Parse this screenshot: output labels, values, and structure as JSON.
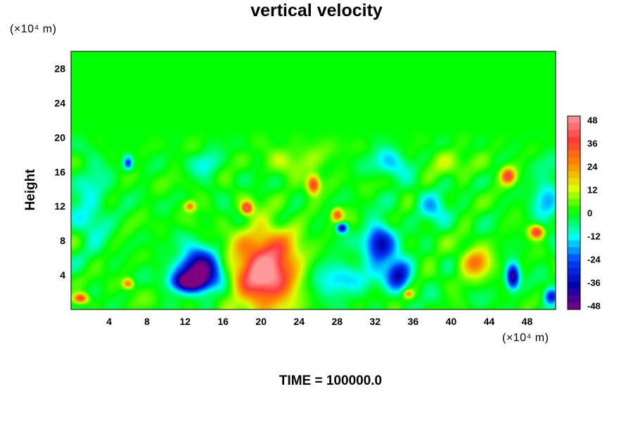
{
  "chart_data": {
    "type": "heatmap",
    "title": "vertical velocity",
    "ylabel": "Height",
    "xlabel": "",
    "y_unit": "(×10⁴ m)",
    "x_unit": "(×10⁴ m)",
    "footer": "TIME = 100000.0",
    "xlim": [
      0,
      51
    ],
    "ylim": [
      0,
      30
    ],
    "x_ticks": [
      4,
      8,
      12,
      16,
      20,
      24,
      28,
      32,
      36,
      40,
      44,
      48
    ],
    "y_ticks": [
      4,
      8,
      12,
      16,
      20,
      24,
      28
    ],
    "colorbar": {
      "range": [
        -50,
        50
      ],
      "ticks": [
        48,
        36,
        24,
        12,
        0,
        -12,
        -24,
        -36,
        -48
      ],
      "colors": [
        "#ff9999",
        "#ff3a3a",
        "#ff8c00",
        "#dcff00",
        "#00ff00",
        "#00ffff",
        "#0040ff",
        "#0000aa",
        "#800080"
      ]
    },
    "features": [
      {
        "x": 20.5,
        "y": 4.5,
        "rx": 3.5,
        "ry": 4.5,
        "value": 55
      },
      {
        "x": 13.5,
        "y": 4.5,
        "rx": 2.5,
        "ry": 2.4,
        "value": -52
      },
      {
        "x": 12.5,
        "y": 3.2,
        "rx": 1.8,
        "ry": 1.0,
        "value": -35
      },
      {
        "x": 32.5,
        "y": 7.5,
        "rx": 1.6,
        "ry": 2.4,
        "value": -38
      },
      {
        "x": 34.5,
        "y": 4.0,
        "rx": 1.3,
        "ry": 1.8,
        "value": -36
      },
      {
        "x": 42.5,
        "y": 5.5,
        "rx": 1.6,
        "ry": 1.6,
        "value": 30
      },
      {
        "x": 46.5,
        "y": 3.8,
        "rx": 0.7,
        "ry": 1.5,
        "value": -45
      },
      {
        "x": 25.5,
        "y": 14.5,
        "rx": 0.7,
        "ry": 1.1,
        "value": 40
      },
      {
        "x": 18.5,
        "y": 11.8,
        "rx": 0.6,
        "ry": 0.7,
        "value": 40
      },
      {
        "x": 28.0,
        "y": 11.0,
        "rx": 0.6,
        "ry": 0.8,
        "value": 32
      },
      {
        "x": 49.0,
        "y": 9.0,
        "rx": 0.8,
        "ry": 0.8,
        "value": 42
      },
      {
        "x": 46.0,
        "y": 15.5,
        "rx": 0.8,
        "ry": 1.0,
        "value": 38
      },
      {
        "x": 1.0,
        "y": 1.3,
        "rx": 0.8,
        "ry": 0.6,
        "value": 40
      },
      {
        "x": 6.0,
        "y": 3.0,
        "rx": 0.6,
        "ry": 0.6,
        "value": 30
      },
      {
        "x": 12.5,
        "y": 12.0,
        "rx": 0.6,
        "ry": 0.6,
        "value": 28
      },
      {
        "x": 28.5,
        "y": 9.5,
        "rx": 0.6,
        "ry": 0.6,
        "value": -40
      },
      {
        "x": 50.5,
        "y": 1.5,
        "rx": 0.8,
        "ry": 1.0,
        "value": -35
      },
      {
        "x": 6.0,
        "y": 17.0,
        "rx": 0.5,
        "ry": 0.8,
        "value": -28
      },
      {
        "x": 14.5,
        "y": 17.0,
        "rx": 1.5,
        "ry": 1.5,
        "value": -12
      },
      {
        "x": 33.5,
        "y": 17.0,
        "rx": 2.0,
        "ry": 2.0,
        "value": -15
      },
      {
        "x": 38.0,
        "y": 12.0,
        "rx": 1.8,
        "ry": 1.8,
        "value": -16
      },
      {
        "x": 28.0,
        "y": 3.5,
        "rx": 4.0,
        "ry": 2.5,
        "value": -14
      },
      {
        "x": 2.0,
        "y": 12.0,
        "rx": 2.0,
        "ry": 5.0,
        "value": -12
      },
      {
        "x": 50.0,
        "y": 13.0,
        "rx": 1.5,
        "ry": 4.0,
        "value": -14
      },
      {
        "x": 24.0,
        "y": 17.5,
        "rx": 4.0,
        "ry": 2.0,
        "value": 8
      },
      {
        "x": 40.0,
        "y": 17.0,
        "rx": 3.0,
        "ry": 2.0,
        "value": 6
      },
      {
        "x": 35.5,
        "y": 1.8,
        "rx": 0.5,
        "ry": 0.5,
        "value": 25
      }
    ]
  }
}
